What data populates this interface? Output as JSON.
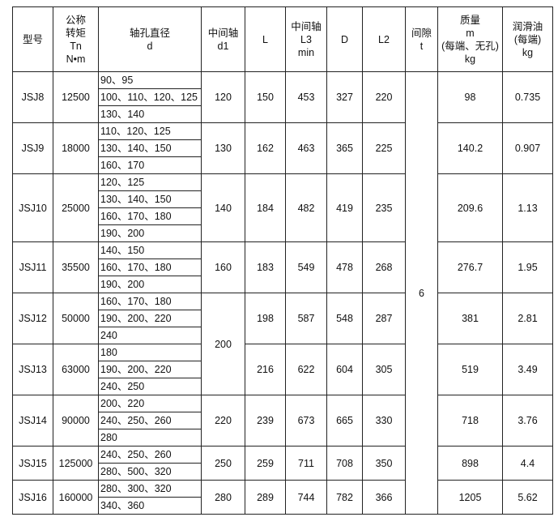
{
  "headers": {
    "model": [
      "型号"
    ],
    "torque": [
      "公称",
      "转矩",
      "Tn",
      "N•m"
    ],
    "bore": [
      "轴孔直径",
      "d"
    ],
    "d1": [
      "中间轴",
      "d1"
    ],
    "L": [
      "L"
    ],
    "L3": [
      "中间轴",
      "L3",
      "min"
    ],
    "D": [
      "D"
    ],
    "L2": [
      "L2"
    ],
    "t": [
      "间隙",
      "t"
    ],
    "mass": [
      "质量",
      "m",
      "(每端、无孔)",
      "kg"
    ],
    "oil": [
      "润滑油",
      "(每端)",
      "kg"
    ]
  },
  "gap_t": "6",
  "rows": [
    {
      "model": "JSJ8",
      "torque": "12500",
      "bores": [
        "90、95",
        "100、110、120、125",
        "130、140"
      ],
      "d1": "120",
      "L": "150",
      "L3": "453",
      "D": "327",
      "L2": "220",
      "mass": "98",
      "oil": "0.735"
    },
    {
      "model": "JSJ9",
      "torque": "18000",
      "bores": [
        "110、120、125",
        "130、140、150",
        "160、170"
      ],
      "d1": "130",
      "L": "162",
      "L3": "463",
      "D": "365",
      "L2": "225",
      "mass": "140.2",
      "oil": "0.907"
    },
    {
      "model": "JSJ10",
      "torque": "25000",
      "bores": [
        "120、125",
        "130、140、150",
        "160、170、180",
        "190、200"
      ],
      "d1": "140",
      "L": "184",
      "L3": "482",
      "D": "419",
      "L2": "235",
      "mass": "209.6",
      "oil": "1.13"
    },
    {
      "model": "JSJ11",
      "torque": "35500",
      "bores": [
        "140、150",
        "160、170、180",
        "190、200"
      ],
      "d1": "160",
      "L": "183",
      "L3": "549",
      "D": "478",
      "L2": "268",
      "mass": "276.7",
      "oil": "1.95"
    },
    {
      "model": "JSJ12",
      "torque": "50000",
      "bores": [
        "160、170、180",
        "190、200、220",
        "240"
      ],
      "d1": "200",
      "L": "198",
      "L3": "587",
      "D": "548",
      "L2": "287",
      "mass": "381",
      "oil": "2.81"
    },
    {
      "model": "JSJ13",
      "torque": "63000",
      "bores": [
        "180",
        "190、200、220",
        "240、250"
      ],
      "d1": "200",
      "L": "216",
      "L3": "622",
      "D": "604",
      "L2": "305",
      "mass": "519",
      "oil": "3.49"
    },
    {
      "model": "JSJ14",
      "torque": "90000",
      "bores": [
        "200、220",
        "240、250、260",
        "280"
      ],
      "d1": "220",
      "L": "239",
      "L3": "673",
      "D": "665",
      "L2": "330",
      "mass": "718",
      "oil": "3.76"
    },
    {
      "model": "JSJ15",
      "torque": "125000",
      "bores": [
        "240、250、260",
        "280、500、320"
      ],
      "d1": "250",
      "L": "259",
      "L3": "711",
      "D": "708",
      "L2": "350",
      "mass": "898",
      "oil": "4.4"
    },
    {
      "model": "JSJ16",
      "torque": "160000",
      "bores": [
        "280、300、320",
        "340、360"
      ],
      "d1": "280",
      "L": "289",
      "L3": "744",
      "D": "782",
      "L2": "366",
      "mass": "1205",
      "oil": "5.62"
    }
  ]
}
